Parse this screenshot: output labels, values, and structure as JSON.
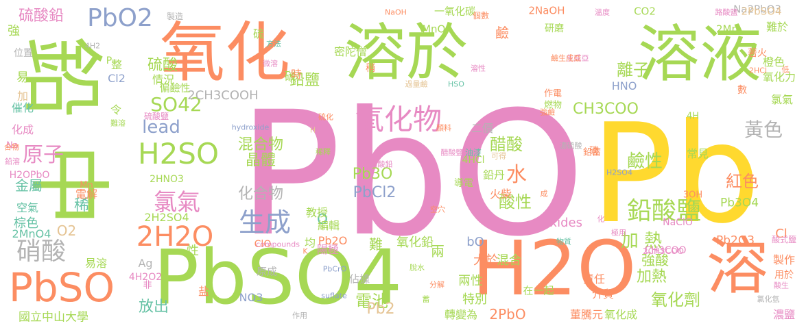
{
  "palette": {
    "pink": "#e78ac3",
    "yellow": "#ffd92f",
    "green": "#a6d854",
    "orange": "#fc8d62",
    "teal": "#66c2a5",
    "blue": "#8da0cb",
    "tan": "#e5c494",
    "gray": "#b3b3b3"
  },
  "words": [
    "PbO",
    "Pb",
    "鉛",
    "中",
    "氧化",
    "溶於",
    "溶液",
    "PbSO4",
    "H2O",
    "溶",
    "PbO2",
    "硫酸鉛",
    "PbSO",
    "硝酸",
    "生成",
    "2H2O",
    "氧化物",
    "H2SO",
    "lead",
    "原子",
    "SO42",
    "氯氣",
    "黃色",
    "鉛酸鹽",
    "醋酸",
    "水",
    "鹼性",
    "紅色",
    "Pb3O",
    "PbCl2",
    "化合物",
    "混合物",
    "晶體",
    "酸性",
    "加熱",
    "加 熱",
    "氧化劑",
    "電池",
    "2PbO",
    "金屬",
    "稀",
    "棕色",
    "放出",
    "離子",
    "CH3COO",
    "鉛鹽",
    "強酸",
    "混合",
    "兩性",
    "兩",
    "難",
    "氧化鉛",
    "大於",
    "特別",
    "國立中山大學",
    "2CH3COOH",
    "Pb2O3",
    "Pb3O4",
    "Pb2",
    "NaClO",
    "Na2PbO3",
    "2NaOH",
    "2PbSO4",
    "CO2",
    "2Mn",
    "MnO4",
    "一氧化碳",
    "強",
    "硫酸",
    "情況",
    "偏鹼性",
    "密陀僧",
    "稍",
    "鹼",
    "研磨",
    "橙色",
    "易",
    "位置",
    "加",
    "催化",
    "化成",
    "空氣",
    "2MnO4",
    "2H2SO4",
    "2HNO3",
    "O2",
    "ClO",
    "Cl",
    "Cl2",
    "HNO",
    "NO3",
    "O",
    "bO",
    "oxides",
    "Ag",
    "4H2O2",
    "CH3COO",
    "硫",
    "碳",
    "時",
    "磷",
    "鉛丹",
    "陽極",
    "火柴",
    "教授",
    "編輯",
    "轉變為",
    "在一起",
    "董騰元",
    "氧化成",
    "責任",
    "介質",
    "濃鹽",
    "製作",
    "用於",
    "常見",
    "二價",
    "鉛蓄",
    "4HCl",
    "導電",
    "硫化",
    "顏料",
    "難於",
    "著火",
    "氧化力",
    "數",
    "氯氣",
    "酸式鹽",
    "4H",
    "3OH",
    "Na",
    "鉛溶",
    "H2OPbO",
    "Mn",
    "性",
    "均",
    "易溶",
    "原成",
    "佔據",
    "溶性",
    "hydroxide",
    "compounds",
    "PbCrO",
    "suflate",
    "油漆",
    "可得",
    "稀釋",
    "H",
    "令",
    "難溶",
    "電解",
    "盐",
    "作用",
    "分解",
    "脫水",
    "蓄",
    "物質",
    "極用",
    "氯化氫",
    "酸生",
    "2HCl",
    "低",
    "過量鹼",
    "HSO",
    "微溶",
    "方法",
    "4H2",
    "個數",
    "製造",
    "NaOH",
    "溫度",
    "路酸鹽",
    "整",
    "P",
    "醋酸鉛",
    "生成亞",
    "濃硫酸",
    "強鹼",
    "燃物",
    "作電",
    "鹼生成亞",
    "H2SO4",
    "空穴",
    "成",
    "化",
    "Pb2O",
    "2CH3COO",
    "非",
    "醋酸鹽",
    "硫酸鹽",
    "合物",
    "K"
  ]
}
